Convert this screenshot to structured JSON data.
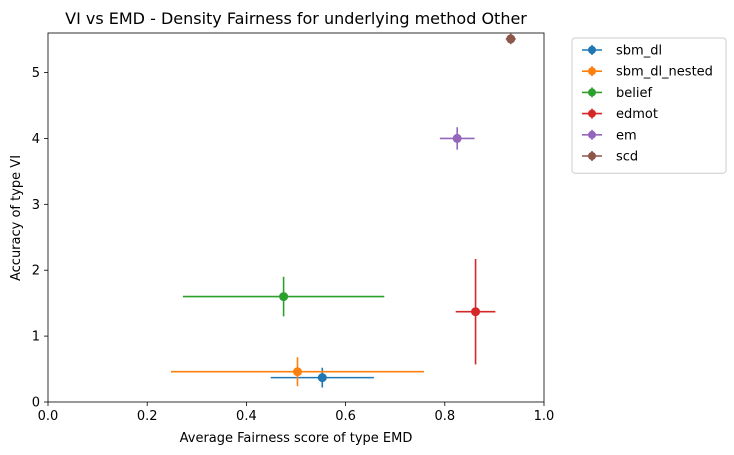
{
  "chart_data": {
    "type": "scatter",
    "title": "VI vs EMD - Density Fairness for underlying method Other",
    "xlabel": "Average Fairness score of type EMD",
    "ylabel": "Accuracy of type VI",
    "xlim": [
      0.0,
      1.0
    ],
    "ylim": [
      0,
      5.6
    ],
    "xticks": [
      "0.0",
      "0.2",
      "0.4",
      "0.6",
      "0.8",
      "1.0"
    ],
    "yticks": [
      "0",
      "1",
      "2",
      "3",
      "4",
      "5"
    ],
    "grid": false,
    "legend_position": "outside-top-right",
    "series": [
      {
        "name": "sbm_dl",
        "color": "#1f77b4",
        "x": 0.553,
        "y": 0.37,
        "xerr": 0.104,
        "yerr": 0.15
      },
      {
        "name": "sbm_dl_nested",
        "color": "#ff7f0e",
        "x": 0.503,
        "y": 0.46,
        "xerr": 0.255,
        "yerr": 0.22
      },
      {
        "name": "belief",
        "color": "#2ca02c",
        "x": 0.475,
        "y": 1.6,
        "xerr": 0.203,
        "yerr": 0.3
      },
      {
        "name": "edmot",
        "color": "#d62728",
        "x": 0.862,
        "y": 1.37,
        "xerr": 0.04,
        "yerr": 0.8
      },
      {
        "name": "em",
        "color": "#9467bd",
        "x": 0.825,
        "y": 4.0,
        "xerr": 0.035,
        "yerr": 0.17
      },
      {
        "name": "scd",
        "color": "#8c564b",
        "x": 0.933,
        "y": 5.51,
        "xerr": 0.01,
        "yerr": 0.08
      }
    ]
  }
}
